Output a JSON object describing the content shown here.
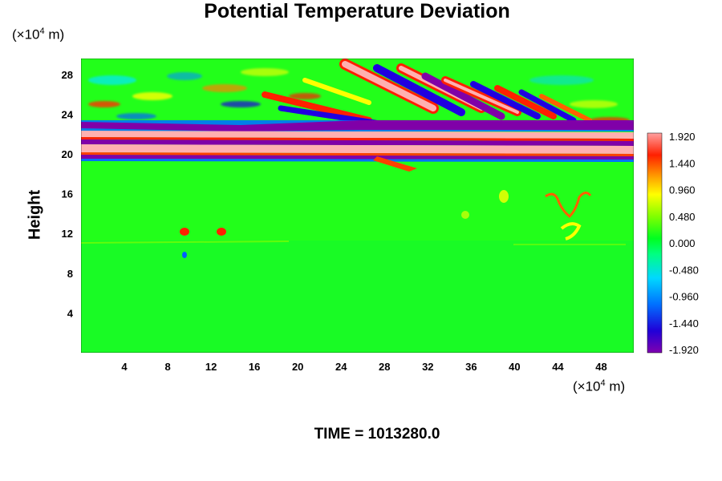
{
  "chart_data": {
    "type": "heatmap",
    "title": "Potential Temperature Deviation",
    "ylabel": "Height",
    "y_unit": {
      "base": "(×10",
      "exp": "4",
      "tail": " m)"
    },
    "x_unit": {
      "base": "(×10",
      "exp": "4",
      "tail": " m)"
    },
    "x_ticks": [
      4,
      8,
      12,
      16,
      20,
      24,
      28,
      32,
      36,
      40,
      44,
      48
    ],
    "y_ticks": [
      4,
      8,
      12,
      16,
      20,
      24,
      28
    ],
    "xlim": [
      0,
      51
    ],
    "ylim": [
      0,
      29.6
    ],
    "colorbar": {
      "ticks": [
        "1.920",
        "1.440",
        "0.960",
        "0.480",
        "0.000",
        "-0.480",
        "-0.960",
        "-1.440",
        "-1.920"
      ],
      "range": [
        -1.92,
        1.92
      ]
    },
    "footer": "TIME = 1013280.0",
    "colors": {
      "background": "#00ff2a",
      "high": "#ffb0b0",
      "low": "#8000a8"
    }
  }
}
